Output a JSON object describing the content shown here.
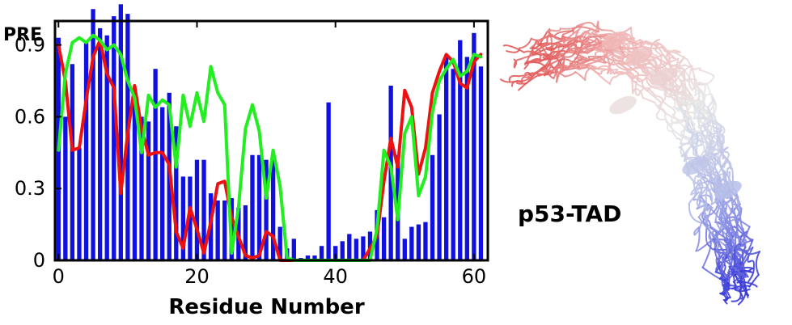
{
  "chart_data": {
    "type": "bar",
    "ylabel": "PRE",
    "xlabel": "Residue Number",
    "xlim": [
      -0.5,
      62
    ],
    "ylim": [
      0,
      1.0
    ],
    "x_ticks": [
      0,
      20,
      40,
      60
    ],
    "y_ticks": [
      0,
      0.3,
      0.6,
      0.9
    ],
    "y_tick_labels": [
      "0",
      "0.3",
      "0.6",
      "0.9"
    ],
    "grid": false,
    "legend": "none",
    "bars": {
      "color": "#1010e0",
      "x": [
        0,
        1,
        2,
        3,
        4,
        5,
        6,
        7,
        8,
        9,
        10,
        11,
        12,
        13,
        14,
        15,
        16,
        17,
        18,
        19,
        20,
        21,
        22,
        23,
        24,
        25,
        26,
        27,
        28,
        29,
        30,
        31,
        32,
        33,
        34,
        35,
        36,
        37,
        38,
        39,
        40,
        41,
        42,
        43,
        44,
        45,
        46,
        47,
        48,
        49,
        50,
        51,
        52,
        53,
        54,
        55,
        56,
        57,
        58,
        59,
        60,
        61
      ],
      "values": [
        0.93,
        0.6,
        0.82,
        0.47,
        0.91,
        1.05,
        0.97,
        0.94,
        1.02,
        1.07,
        1.03,
        0.72,
        0.6,
        0.58,
        0.8,
        0.64,
        0.7,
        0.56,
        0.35,
        0.35,
        0.42,
        0.42,
        0.28,
        0.25,
        0.25,
        0.26,
        0.22,
        0.23,
        0.44,
        0.44,
        0.42,
        0.42,
        0.14,
        0.05,
        0.09,
        0.01,
        0.02,
        0.02,
        0.06,
        0.66,
        0.06,
        0.08,
        0.11,
        0.09,
        0.1,
        0.12,
        0.21,
        0.18,
        0.73,
        0.44,
        0.09,
        0.14,
        0.15,
        0.16,
        0.44,
        0.61,
        0.85,
        0.8,
        0.92,
        0.85,
        0.95,
        0.81
      ]
    },
    "series": [
      {
        "color": "#ee1111",
        "x": [
          0,
          1,
          2,
          3,
          4,
          5,
          6,
          7,
          8,
          9,
          10,
          11,
          12,
          13,
          14,
          15,
          16,
          17,
          18,
          19,
          20,
          21,
          22,
          23,
          24,
          25,
          26,
          27,
          28,
          29,
          30,
          31,
          32,
          33,
          34,
          35,
          36,
          37,
          38,
          39,
          40,
          41,
          42,
          43,
          44,
          45,
          46,
          47,
          48,
          49,
          50,
          51,
          52,
          53,
          54,
          55,
          56,
          57,
          58,
          59,
          60,
          61
        ],
        "values": [
          0.9,
          0.75,
          0.46,
          0.47,
          0.67,
          0.85,
          0.92,
          0.78,
          0.72,
          0.28,
          0.53,
          0.73,
          0.55,
          0.44,
          0.45,
          0.45,
          0.4,
          0.12,
          0.05,
          0.22,
          0.13,
          0.03,
          0.16,
          0.32,
          0.33,
          0.18,
          0.1,
          0.02,
          0.01,
          0.02,
          0.12,
          0.1,
          0.0,
          0.0,
          0.0,
          0.0,
          0.0,
          0.0,
          0.0,
          0.0,
          0.0,
          0.0,
          0.0,
          0.0,
          0.0,
          0.05,
          0.1,
          0.33,
          0.51,
          0.39,
          0.71,
          0.64,
          0.36,
          0.47,
          0.7,
          0.79,
          0.86,
          0.83,
          0.74,
          0.72,
          0.83,
          0.86
        ]
      },
      {
        "color": "#22ee22",
        "x": [
          0,
          1,
          2,
          3,
          4,
          5,
          6,
          7,
          8,
          9,
          10,
          11,
          12,
          13,
          14,
          15,
          16,
          17,
          18,
          19,
          20,
          21,
          22,
          23,
          24,
          25,
          26,
          27,
          28,
          29,
          30,
          31,
          32,
          33,
          34,
          35,
          36,
          37,
          38,
          39,
          40,
          41,
          42,
          43,
          44,
          45,
          46,
          47,
          48,
          49,
          50,
          51,
          52,
          53,
          54,
          55,
          56,
          57,
          58,
          59,
          60,
          61
        ],
        "values": [
          0.46,
          0.78,
          0.91,
          0.93,
          0.91,
          0.94,
          0.92,
          0.88,
          0.9,
          0.86,
          0.75,
          0.68,
          0.45,
          0.69,
          0.64,
          0.67,
          0.65,
          0.39,
          0.69,
          0.56,
          0.7,
          0.58,
          0.81,
          0.7,
          0.65,
          0.03,
          0.22,
          0.55,
          0.65,
          0.54,
          0.26,
          0.46,
          0.31,
          0.01,
          0.0,
          0.0,
          0.0,
          0.0,
          0.0,
          0.0,
          0.0,
          0.0,
          0.0,
          0.0,
          0.0,
          0.0,
          0.13,
          0.46,
          0.39,
          0.17,
          0.53,
          0.6,
          0.27,
          0.35,
          0.62,
          0.75,
          0.8,
          0.84,
          0.77,
          0.79,
          0.86,
          0.85
        ]
      }
    ]
  },
  "structure": {
    "label": "p53-TAD",
    "gradient_colors": [
      "#e05050",
      "#f0b8b8",
      "#e8e8e8",
      "#b0b8e8",
      "#3a3ad8"
    ]
  }
}
